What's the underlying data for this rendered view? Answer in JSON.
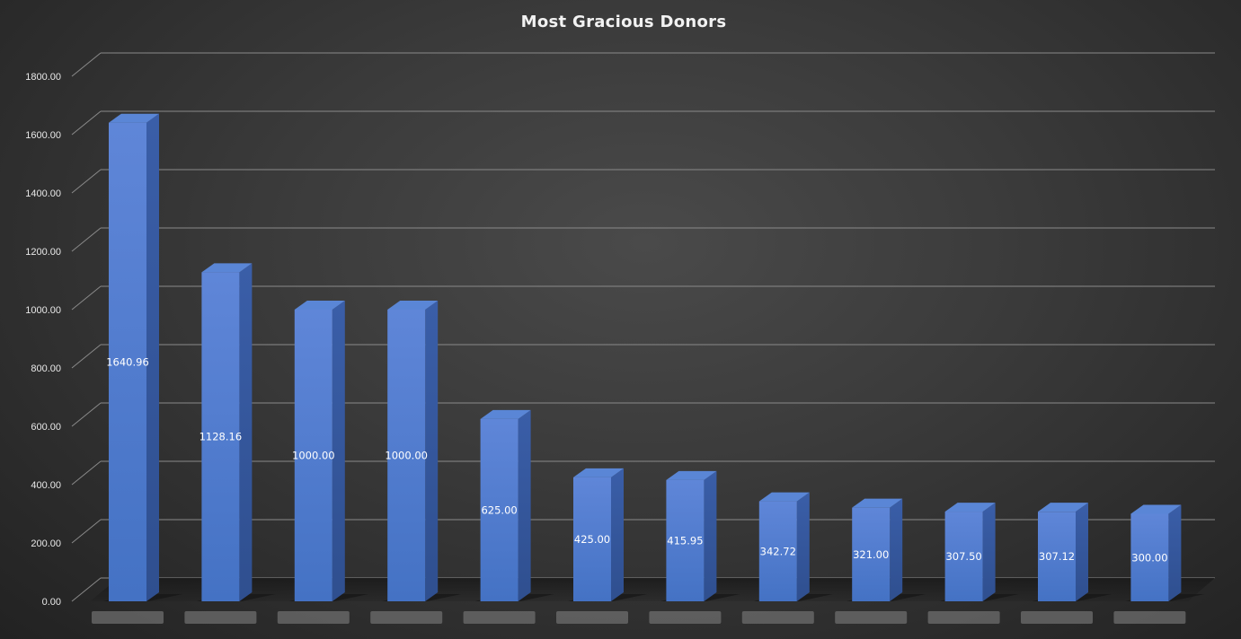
{
  "chart_data": {
    "type": "bar",
    "title": "Most Gracious Donors",
    "xlabel": "",
    "ylabel": "",
    "categories": [
      "",
      "",
      "",
      "",
      "",
      "",
      "",
      "",
      "",
      "",
      "",
      ""
    ],
    "values": [
      1640.96,
      1128.16,
      1000.0,
      1000.0,
      625.0,
      425.0,
      415.95,
      342.72,
      321.0,
      307.5,
      307.12,
      300.0
    ],
    "data_labels": [
      "1640.96",
      "1128.16",
      "1000.00",
      "1000.00",
      "625.00",
      "425.00",
      "415.95",
      "342.72",
      "321.00",
      "307.50",
      "307.12",
      "300.00"
    ],
    "y_ticks": [
      "0.00",
      "200.00",
      "400.00",
      "600.00",
      "800.00",
      "1000.00",
      "1200.00",
      "1400.00",
      "1600.00",
      "1800.00"
    ],
    "ylim": [
      0,
      1800
    ],
    "grid": true,
    "legend": "none",
    "style": "3d-column",
    "colors": {
      "bar_front": "#4472c4",
      "bar_side": "#2f4f8f",
      "bar_top": "#5a86d6",
      "gridline": "#8a8a8a",
      "background": "#3a3a3a",
      "text": "#e8e8e8"
    }
  }
}
